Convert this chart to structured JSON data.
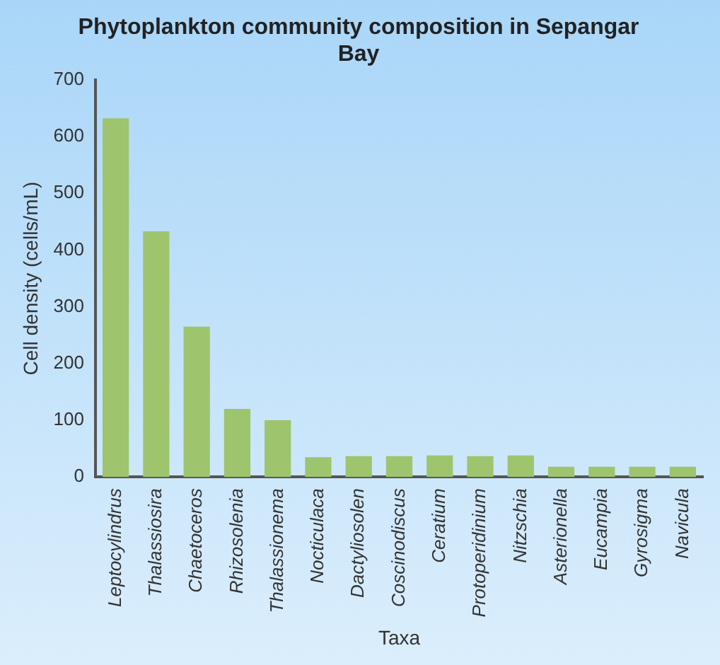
{
  "chart_data": {
    "type": "bar",
    "title": "Phytoplankton community composition in Sepangar Bay",
    "xlabel": "Taxa",
    "ylabel": "Cell density (cells/mL)",
    "categories": [
      "Leptocylindrus",
      "Thalassiosira",
      "Chaetoceros",
      "Rhizosolenia",
      "Thalassionema",
      "Nocticulaca",
      "Dactyliosolen",
      "Coscinodiscus",
      "Ceratium",
      "Protoperidinium",
      "Nitzschia",
      "Asterionella",
      "Eucampia",
      "Gyrosigma",
      "Navicula"
    ],
    "values": [
      632,
      433,
      265,
      120,
      100,
      35,
      37,
      37,
      38,
      37,
      38,
      18,
      18,
      18,
      18
    ],
    "color": "#9ec46e",
    "ylim": [
      0,
      700
    ],
    "yticks": [
      0,
      100,
      200,
      300,
      400,
      500,
      600,
      700
    ],
    "grid": false,
    "legend": false
  }
}
